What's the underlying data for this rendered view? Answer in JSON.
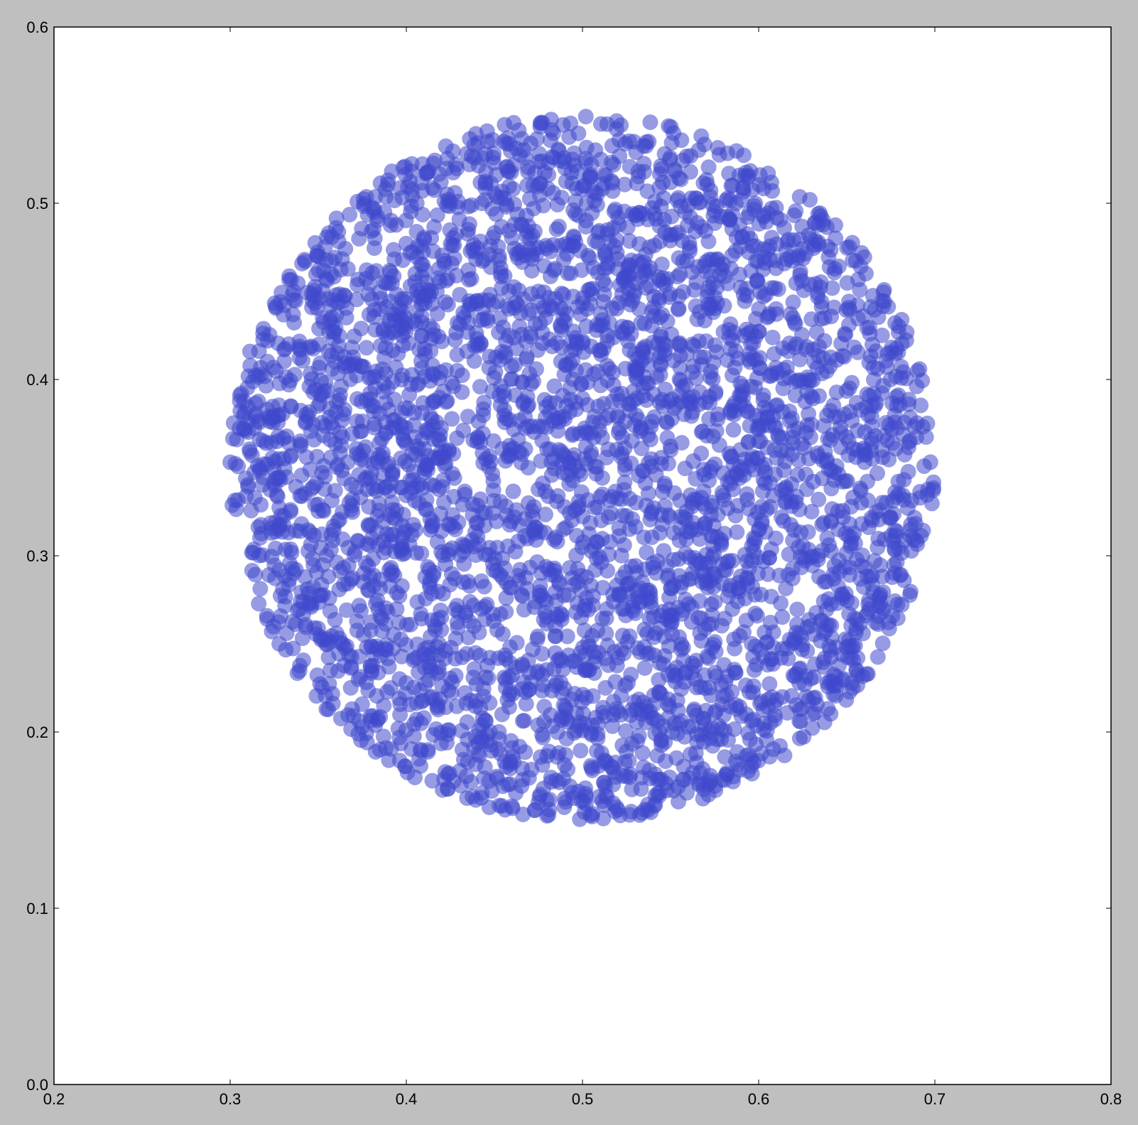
{
  "chart_data": {
    "type": "scatter",
    "title": "",
    "xlabel": "",
    "ylabel": "",
    "xlim": [
      0.2,
      0.8
    ],
    "ylim": [
      0.0,
      0.6
    ],
    "x_ticks": [
      "0.2",
      "0.3",
      "0.4",
      "0.5",
      "0.6",
      "0.7",
      "0.8"
    ],
    "y_ticks": [
      "0.0",
      "0.1",
      "0.2",
      "0.3",
      "0.4",
      "0.5",
      "0.6"
    ],
    "grid": false,
    "legend": "none",
    "series": [
      {
        "marker_color": "#3f48cc",
        "marker_alpha": 0.55,
        "distribution": "uniform within circle",
        "center": [
          0.5,
          0.35
        ],
        "radius": 0.2,
        "approx_count": 4000
      }
    ]
  },
  "colors": {
    "figure_background": "#bfbfbf",
    "axes_background": "#ffffff",
    "axes_frame": "#000000",
    "marker": "#3f48cc"
  }
}
